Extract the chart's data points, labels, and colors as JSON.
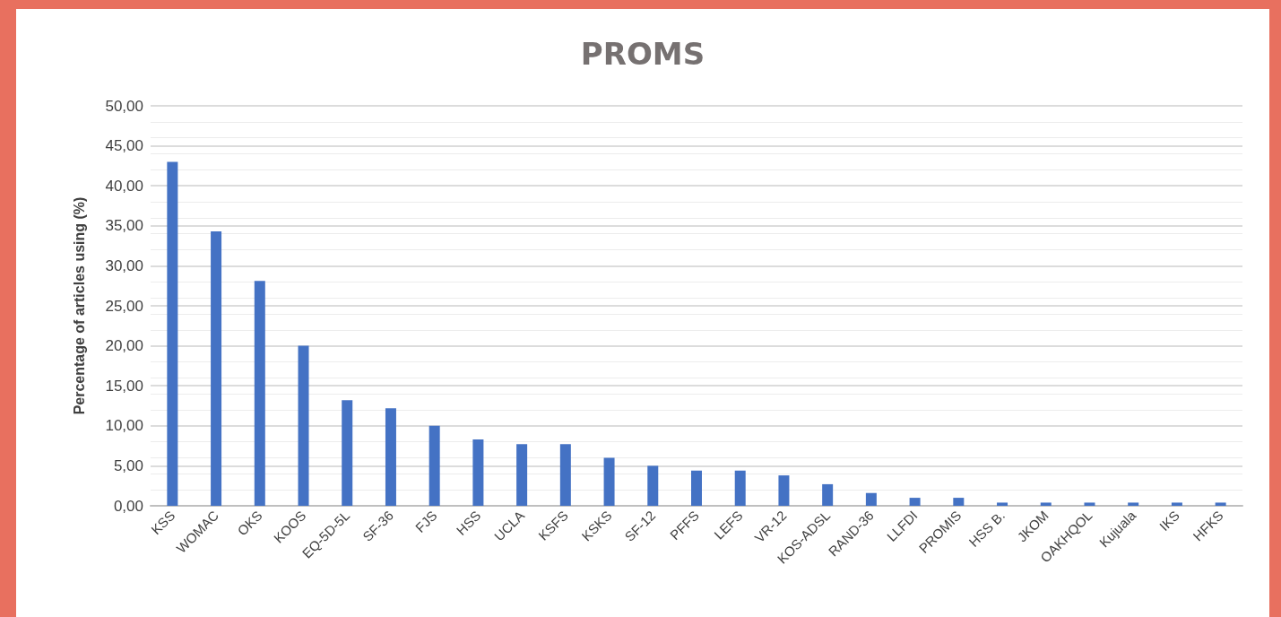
{
  "chart_data": {
    "type": "bar",
    "title": "PROMS",
    "ylabel": "Percentage of articles using (%)",
    "categories": [
      "KSS",
      "WOMAC",
      "OKS",
      "KOOS",
      "EQ-5D-5L",
      "SF-36",
      "FJS",
      "HSS",
      "UCLA",
      "KSFS",
      "KSKS",
      "SF-12",
      "PFFS",
      "LEFS",
      "VR-12",
      "KOS-ADSL",
      "RAND-36",
      "LLFDI",
      "PROMIS",
      "HSS B.",
      "JKOM",
      "OAKHQOL",
      "Kujuala",
      "IKS",
      "HFKS"
    ],
    "values": [
      43.0,
      34.3,
      28.1,
      20.0,
      13.2,
      12.2,
      10.0,
      8.3,
      7.7,
      7.7,
      6.0,
      5.0,
      4.4,
      4.4,
      3.8,
      2.7,
      1.6,
      1.0,
      1.0,
      0.4,
      0.4,
      0.4,
      0.4,
      0.4,
      0.4
    ],
    "color": "#4472c4",
    "ylim": [
      0,
      50
    ],
    "yticks": [
      {
        "value": 0,
        "label": "0,00"
      },
      {
        "value": 5,
        "label": "5,00"
      },
      {
        "value": 10,
        "label": "10,00"
      },
      {
        "value": 15,
        "label": "15,00"
      },
      {
        "value": 20,
        "label": "20,00"
      },
      {
        "value": 25,
        "label": "25,00"
      },
      {
        "value": 30,
        "label": "30,00"
      },
      {
        "value": 35,
        "label": "35,00"
      },
      {
        "value": 40,
        "label": "40,00"
      },
      {
        "value": 45,
        "label": "45,00"
      },
      {
        "value": 50,
        "label": "50,00"
      }
    ],
    "grid": "y"
  }
}
